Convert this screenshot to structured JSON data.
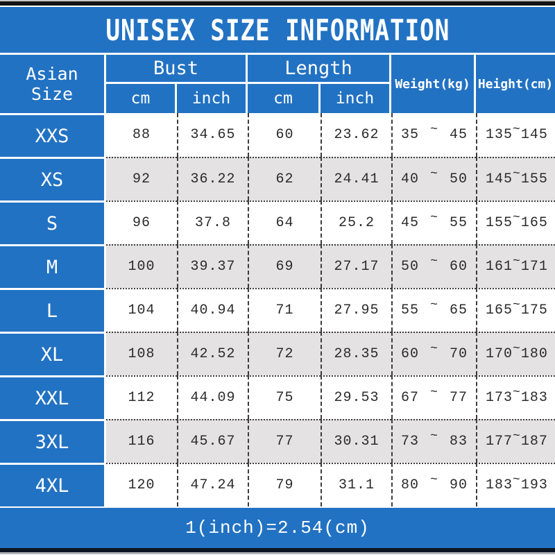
{
  "title": "UNISEX SIZE INFORMATION",
  "footer_note": "1(inch)=2.54(cm)",
  "tilde": "~",
  "colors": {
    "blue": "#2272c3",
    "alt_row": "#e4e2e3",
    "data_text": "#2b2b2b",
    "grid": "#3c3c3c",
    "top_bar": "#141414",
    "bottom_bar": "#0d1524",
    "bottom_strip": "#b4b8bc"
  },
  "table": {
    "corner_header": "Asian Size",
    "groups": [
      {
        "label": "Bust",
        "sub": [
          "cm",
          "inch"
        ]
      },
      {
        "label": "Length",
        "sub": [
          "cm",
          "inch"
        ]
      }
    ],
    "single_headers": [
      "Weight(kg)",
      "Height(cm)"
    ],
    "rows": [
      {
        "size": "XXS",
        "bust_cm": "88",
        "bust_inch": "34.65",
        "length_cm": "60",
        "length_inch": "23.62",
        "weight_min": "35",
        "weight_max": "45",
        "height_min": "135",
        "height_max": "145"
      },
      {
        "size": "XS",
        "bust_cm": "92",
        "bust_inch": "36.22",
        "length_cm": "62",
        "length_inch": "24.41",
        "weight_min": "40",
        "weight_max": "50",
        "height_min": "145",
        "height_max": "155"
      },
      {
        "size": "S",
        "bust_cm": "96",
        "bust_inch": "37.8",
        "length_cm": "64",
        "length_inch": "25.2",
        "weight_min": "45",
        "weight_max": "55",
        "height_min": "155",
        "height_max": "165"
      },
      {
        "size": "M",
        "bust_cm": "100",
        "bust_inch": "39.37",
        "length_cm": "69",
        "length_inch": "27.17",
        "weight_min": "50",
        "weight_max": "60",
        "height_min": "161",
        "height_max": "171"
      },
      {
        "size": "L",
        "bust_cm": "104",
        "bust_inch": "40.94",
        "length_cm": "71",
        "length_inch": "27.95",
        "weight_min": "55",
        "weight_max": "65",
        "height_min": "165",
        "height_max": "175"
      },
      {
        "size": "XL",
        "bust_cm": "108",
        "bust_inch": "42.52",
        "length_cm": "72",
        "length_inch": "28.35",
        "weight_min": "60",
        "weight_max": "70",
        "height_min": "170",
        "height_max": "180"
      },
      {
        "size": "XXL",
        "bust_cm": "112",
        "bust_inch": "44.09",
        "length_cm": "75",
        "length_inch": "29.53",
        "weight_min": "67",
        "weight_max": "77",
        "height_min": "173",
        "height_max": "183"
      },
      {
        "size": "3XL",
        "bust_cm": "116",
        "bust_inch": "45.67",
        "length_cm": "77",
        "length_inch": "30.31",
        "weight_min": "73",
        "weight_max": "83",
        "height_min": "177",
        "height_max": "187"
      },
      {
        "size": "4XL",
        "bust_cm": "120",
        "bust_inch": "47.24",
        "length_cm": "79",
        "length_inch": "31.1",
        "weight_min": "80",
        "weight_max": "90",
        "height_min": "183",
        "height_max": "193"
      }
    ]
  },
  "chart_data": {
    "type": "table",
    "title": "UNISEX SIZE INFORMATION",
    "columns": [
      "Asian Size",
      "Bust cm",
      "Bust inch",
      "Length cm",
      "Length inch",
      "Weight(kg)",
      "Height(cm)"
    ],
    "rows": [
      [
        "XXS",
        88,
        34.65,
        60,
        23.62,
        "35 ~ 45",
        "135 ~ 145"
      ],
      [
        "XS",
        92,
        36.22,
        62,
        24.41,
        "40 ~ 50",
        "145 ~ 155"
      ],
      [
        "S",
        96,
        37.8,
        64,
        25.2,
        "45 ~ 55",
        "155 ~ 165"
      ],
      [
        "M",
        100,
        39.37,
        69,
        27.17,
        "50 ~ 60",
        "161 ~ 171"
      ],
      [
        "L",
        104,
        40.94,
        71,
        27.95,
        "55 ~ 65",
        "165 ~ 175"
      ],
      [
        "XL",
        108,
        42.52,
        72,
        28.35,
        "60 ~ 70",
        "170 ~ 180"
      ],
      [
        "XXL",
        112,
        44.09,
        75,
        29.53,
        "67 ~ 77",
        "173 ~ 183"
      ],
      [
        "3XL",
        116,
        45.67,
        77,
        30.31,
        "73 ~ 83",
        "177 ~ 187"
      ],
      [
        "4XL",
        120,
        47.24,
        79,
        31.1,
        "80 ~ 90",
        "183 ~ 193"
      ]
    ],
    "footnote": "1(inch)=2.54(cm)"
  }
}
